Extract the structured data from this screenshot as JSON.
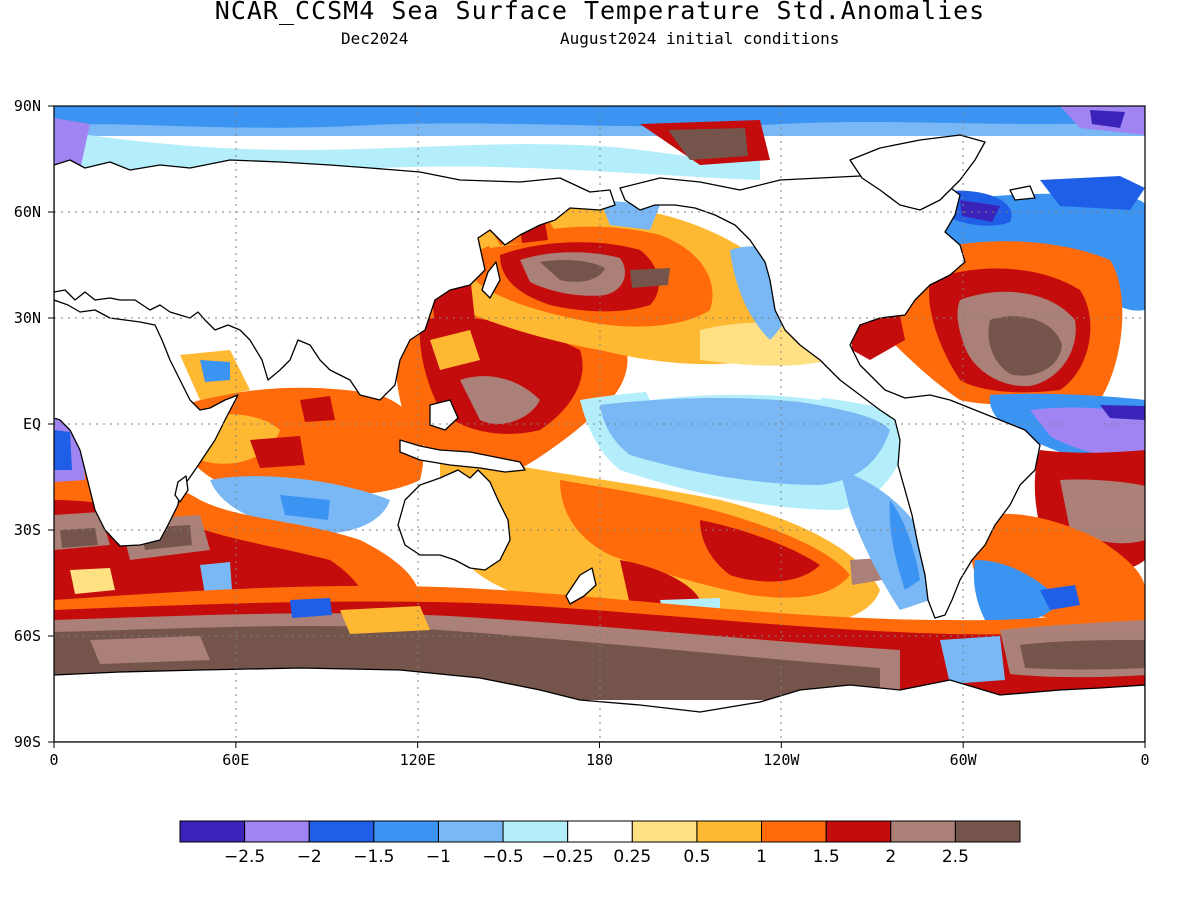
{
  "title": "NCAR_CCSM4 Sea Surface Temperature Std.Anomalies",
  "subtitle_left": "Dec2024",
  "subtitle_right": "August2024 initial conditions",
  "map": {
    "lat_ticks": [
      "90N",
      "60N",
      "30N",
      "EQ",
      "30S",
      "60S",
      "90S"
    ],
    "lon_ticks": [
      "0",
      "60E",
      "120E",
      "180",
      "120W",
      "60W",
      "0"
    ],
    "ocean_default_color": "#ffffff",
    "land_color": "#ffffff",
    "coast_color": "#000000",
    "grid": "dotted"
  },
  "colorbar": {
    "colors": [
      "#3a23b8",
      "#9f84f2",
      "#1f5ee6",
      "#3b93f2",
      "#79b8f5",
      "#b5eefb",
      "#ffffff",
      "#ffe083",
      "#ffb832",
      "#ff6a0a",
      "#c40c0c",
      "#ab8078",
      "#74544b"
    ],
    "labels": [
      "−2.5",
      "−2",
      "−1.5",
      "−1",
      "−0.5",
      "−0.25",
      "0.25",
      "0.5",
      "1",
      "1.5",
      "2",
      "2.5"
    ]
  }
}
